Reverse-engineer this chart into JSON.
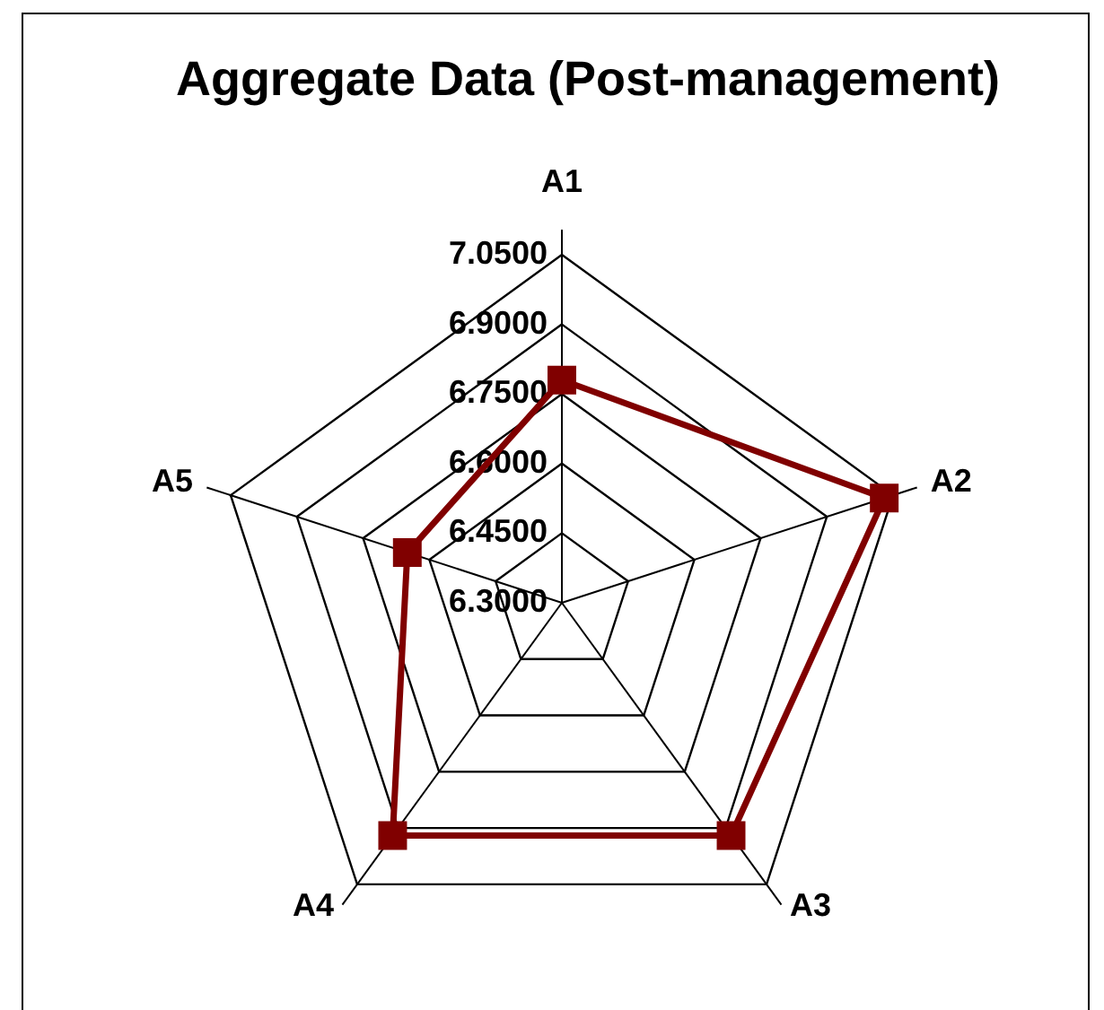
{
  "chart_data": {
    "type": "radar",
    "title": "Aggregate Data (Post-management)",
    "categories": [
      "A1",
      "A2",
      "A3",
      "A4",
      "A5"
    ],
    "series": [
      {
        "color": "#800000",
        "values": [
          6.78,
          7.03,
          6.92,
          6.92,
          6.65
        ]
      }
    ],
    "ylim": [
      6.3,
      7.05
    ],
    "yticks": [
      {
        "value": 6.3,
        "label": "6.3000"
      },
      {
        "value": 6.45,
        "label": "6.4500"
      },
      {
        "value": 6.6,
        "label": "6.6000"
      },
      {
        "value": 6.75,
        "label": "6.7500"
      },
      {
        "value": 6.9,
        "label": "6.9000"
      },
      {
        "value": 7.05,
        "label": "7.0500"
      }
    ],
    "grid": true,
    "marker": "square"
  }
}
